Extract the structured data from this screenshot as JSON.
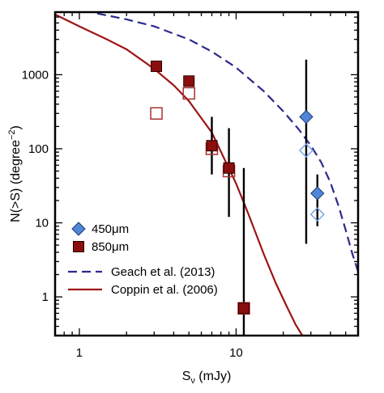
{
  "chart_data": {
    "type": "scatter",
    "xlabel": "S",
    "xlabel_sub": "ν",
    "xlabel_unit": " (mJy)",
    "ylabel": "N(>S) (degree",
    "ylabel_sup": "−2",
    "ylabel_close": ")",
    "xscale": "log",
    "yscale": "log",
    "xlim": [
      0.7,
      60
    ],
    "ylim": [
      0.3,
      7000
    ],
    "x_ticks": [
      {
        "value": 1,
        "label": "1"
      },
      {
        "value": 10,
        "label": "10"
      }
    ],
    "y_ticks": [
      {
        "value": 1,
        "label": "1"
      },
      {
        "value": 10,
        "label": "10"
      },
      {
        "value": 100,
        "label": "100"
      },
      {
        "value": 1000,
        "label": "1000"
      }
    ],
    "legend_position": "bottom-left",
    "series": [
      {
        "name": "450μm",
        "kind": "points",
        "marker": "diamond",
        "color": "#4f86d8",
        "points": [
          {
            "x": 28,
            "y": 270,
            "filled": true,
            "yerr": [
              5.2,
              1600
            ]
          },
          {
            "x": 33,
            "y": 25,
            "filled": true,
            "yerr": [
              9,
              45
            ]
          },
          {
            "x": 28,
            "y": 95,
            "filled": false
          },
          {
            "x": 33,
            "y": 13,
            "filled": false
          }
        ]
      },
      {
        "name": "850μm",
        "kind": "points",
        "marker": "square",
        "color": "#8b0e0e",
        "points": [
          {
            "x": 3.1,
            "y": 1300,
            "filled": true
          },
          {
            "x": 5.0,
            "y": 820,
            "filled": true
          },
          {
            "x": 7.0,
            "y": 110,
            "filled": true,
            "yerr": [
              45,
              270
            ]
          },
          {
            "x": 9.0,
            "y": 55,
            "filled": true,
            "yerr": [
              12,
              190
            ]
          },
          {
            "x": 11.2,
            "y": 0.7,
            "filled": true,
            "yerr": [
              0.3,
              55
            ]
          },
          {
            "x": 3.1,
            "y": 300,
            "filled": false
          },
          {
            "x": 5.0,
            "y": 560,
            "filled": false
          },
          {
            "x": 7.0,
            "y": 100,
            "filled": false
          },
          {
            "x": 9.0,
            "y": 50,
            "filled": false
          },
          {
            "x": 11.2,
            "y": 0.7,
            "filled": false
          }
        ]
      },
      {
        "name": "Geach et al. (2013)",
        "kind": "line",
        "dash": "dashed",
        "color": "#2c2a8c",
        "x": [
          1.3,
          2,
          3,
          5,
          7,
          10,
          15,
          20,
          25,
          30,
          35,
          40,
          45,
          50,
          55,
          60
        ],
        "y": [
          6700,
          5600,
          4500,
          3000,
          2050,
          1250,
          600,
          320,
          185,
          110,
          65,
          35,
          17,
          8,
          3.9,
          2.2
        ]
      },
      {
        "name": "Coppin et al. (2006)",
        "kind": "line",
        "dash": "solid",
        "color": "#9e1414",
        "x": [
          0.7,
          1,
          1.5,
          2,
          3,
          4,
          5,
          7,
          10,
          12,
          15,
          18,
          21,
          24,
          26.5
        ],
        "y": [
          6500,
          4500,
          3000,
          2200,
          1200,
          720,
          440,
          165,
          34,
          13,
          3.8,
          1.5,
          0.75,
          0.42,
          0.3
        ]
      }
    ]
  }
}
